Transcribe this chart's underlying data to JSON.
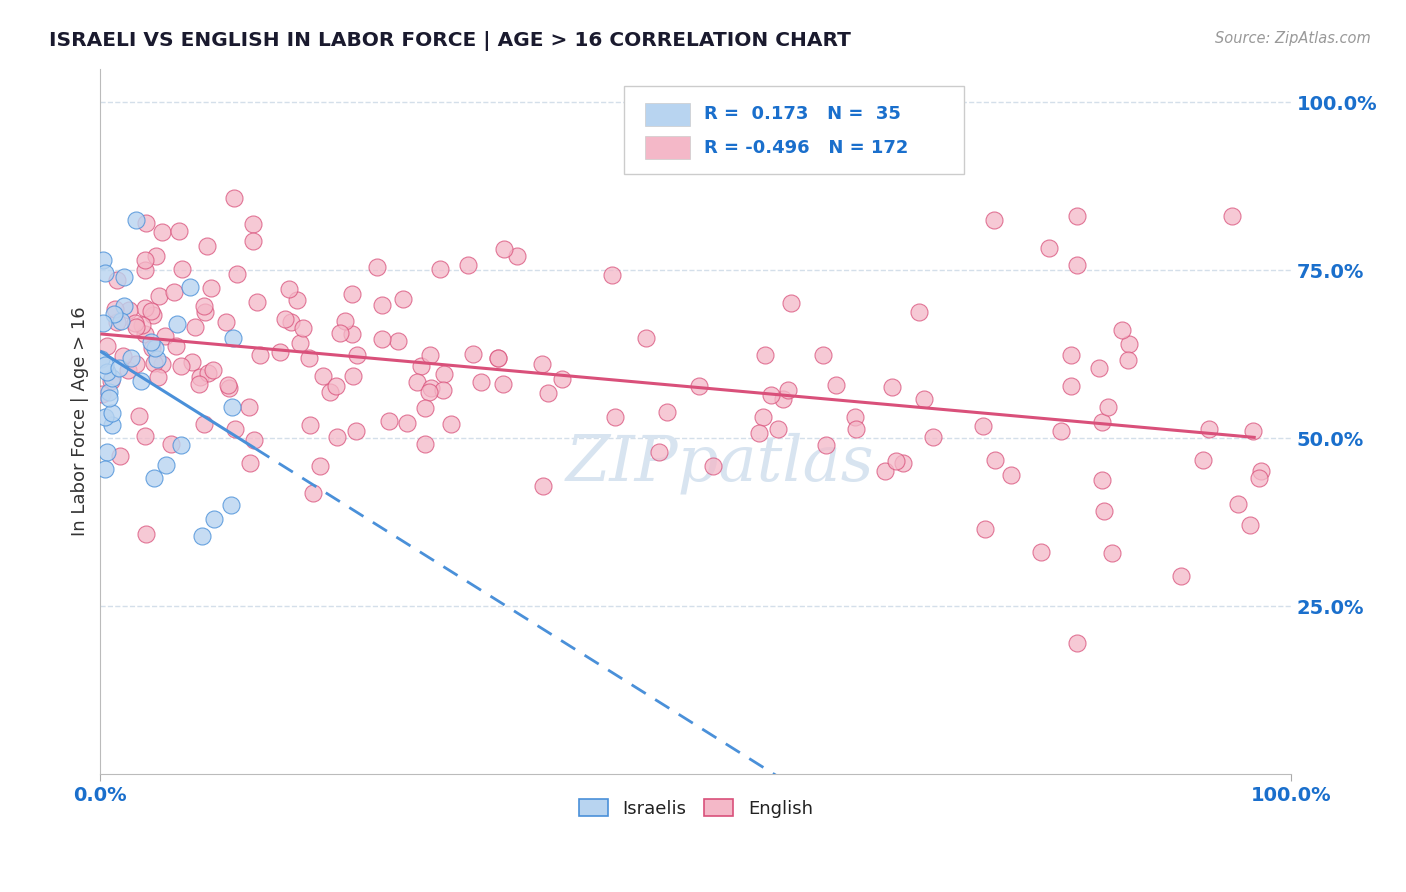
{
  "title": "ISRAELI VS ENGLISH IN LABOR FORCE | AGE > 16 CORRELATION CHART",
  "source_text": "Source: ZipAtlas.com",
  "ylabel": "In Labor Force | Age > 16",
  "y_tick_values": [
    0.25,
    0.5,
    0.75,
    1.0
  ],
  "y_tick_labels": [
    "25.0%",
    "50.0%",
    "75.0%",
    "100.0%"
  ],
  "x_tick_labels": [
    "0.0%",
    "100.0%"
  ],
  "israeli_line_color": "#4a90d9",
  "english_line_color": "#d9507a",
  "israeli_dot_facecolor": "#b8d4f0",
  "english_dot_facecolor": "#f4b8c8",
  "background_color": "#ffffff",
  "grid_color": "#d0dce8",
  "title_color": "#1a1a2e",
  "axis_label_color": "#1a6fcc",
  "watermark_color": "#d8e4f0",
  "R_israeli": 0.173,
  "N_israeli": 35,
  "R_english": -0.496,
  "N_english": 172,
  "isr_seed": 7,
  "eng_seed": 13
}
